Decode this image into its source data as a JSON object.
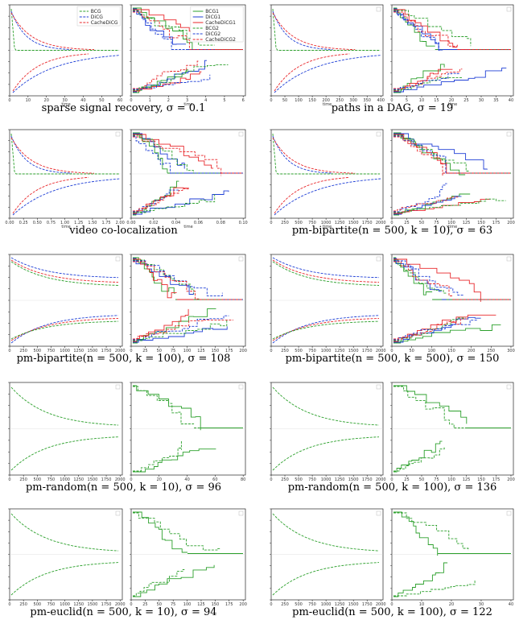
{
  "chart_data": [
    {
      "type": "line",
      "caption": "sparse signal recovery, σ = 0.1",
      "left": {
        "xticks": [
          "0",
          "10",
          "20",
          "30",
          "40",
          "50",
          "60"
        ],
        "xlabel": "time",
        "legend": [
          "BCG",
          "DiCG",
          "CacheDiCG"
        ]
      },
      "right": {
        "xticks": [
          "0",
          "1",
          "2",
          "3",
          "4",
          "5",
          "6"
        ],
        "xlabel": "time",
        "legend": [
          "BCG1",
          "DiCG1",
          "CacheDiCG1",
          "BCG2",
          "DiCG2",
          "CacheDiCG2"
        ]
      }
    },
    {
      "type": "line",
      "caption": "paths in a DAG, σ = 19",
      "left": {
        "xticks": [
          "0",
          "50",
          "100",
          "150",
          "200",
          "250",
          "300",
          "350",
          "400"
        ],
        "xlabel": "time"
      },
      "right": {
        "xticks": [
          "0",
          "5",
          "10",
          "15",
          "20",
          "25",
          "30",
          "35",
          "40"
        ],
        "xlabel": "time"
      }
    },
    {
      "type": "line",
      "caption": "video co-localization",
      "left": {
        "xticks": [
          "0.00",
          "0.25",
          "0.50",
          "0.75",
          "1.00",
          "1.25",
          "1.50",
          "1.75",
          "2.00"
        ],
        "xlabel": "time"
      },
      "right": {
        "xticks": [
          "0.00",
          "0.02",
          "0.04",
          "0.06",
          "0.08",
          "0.10"
        ],
        "xlabel": "time"
      }
    },
    {
      "type": "line",
      "caption": "pm-bipartite(n = 500, k = 10), σ = 63",
      "left": {
        "xticks": [
          "0",
          "250",
          "500",
          "750",
          "1000",
          "1250",
          "1500",
          "1750",
          "2000"
        ],
        "xlabel": "time"
      },
      "right": {
        "xticks": [
          "0",
          "25",
          "50",
          "75",
          "100",
          "125",
          "150",
          "175",
          "200"
        ],
        "xlabel": "time"
      }
    },
    {
      "type": "line",
      "caption": "pm-bipartite(n = 500, k = 100), σ = 108",
      "left": {
        "xticks": [
          "0",
          "250",
          "500",
          "750",
          "1000",
          "1250",
          "1500",
          "1750",
          "2000"
        ]
      },
      "right": {
        "xticks": [
          "0",
          "25",
          "50",
          "75",
          "100",
          "125",
          "150",
          "175",
          "200"
        ]
      }
    },
    {
      "type": "line",
      "caption": "pm-bipartite(n = 500, k = 500), σ = 150",
      "left": {
        "xticks": [
          "0",
          "250",
          "500",
          "750",
          "1000",
          "1250",
          "1500",
          "1750",
          "2000"
        ]
      },
      "right": {
        "xticks": [
          "0",
          "50",
          "100",
          "150",
          "200",
          "250",
          "300"
        ]
      }
    },
    {
      "type": "line",
      "caption": "pm-random(n = 500, k = 10), σ = 96",
      "left": {
        "xticks": [
          "0",
          "250",
          "500",
          "750",
          "1000",
          "1250",
          "1500",
          "1750",
          "2000"
        ]
      },
      "right": {
        "xticks": [
          "0",
          "20",
          "40",
          "60",
          "80"
        ]
      }
    },
    {
      "type": "line",
      "caption": "pm-random(n = 500, k = 100), σ = 136",
      "left": {
        "xticks": [
          "0",
          "250",
          "500",
          "750",
          "1000",
          "1250",
          "1500",
          "1750",
          "2000"
        ]
      },
      "right": {
        "xticks": [
          "0",
          "25",
          "50",
          "75",
          "100",
          "125",
          "150",
          "175",
          "200"
        ]
      }
    },
    {
      "type": "line",
      "caption": "pm-euclid(n = 500, k = 10), σ = 94",
      "left": {
        "xticks": [
          "0",
          "250",
          "500",
          "750",
          "1000",
          "1250",
          "1500",
          "1750",
          "2000"
        ]
      },
      "right": {
        "xticks": [
          "0",
          "25",
          "50",
          "75",
          "100",
          "125",
          "150",
          "175",
          "200"
        ]
      }
    },
    {
      "type": "line",
      "caption": "pm-euclid(n = 500, k = 100), σ = 122",
      "left": {
        "xticks": [
          "0",
          "250",
          "500",
          "750",
          "1000",
          "1250",
          "1500",
          "1750",
          "2000"
        ]
      },
      "right": {
        "xticks": [
          "0",
          "10",
          "20",
          "30",
          "40"
        ]
      }
    }
  ],
  "colors": {
    "bcg": "#2ca02c",
    "dicg": "#1f3fd6",
    "cache": "#e8262a"
  }
}
